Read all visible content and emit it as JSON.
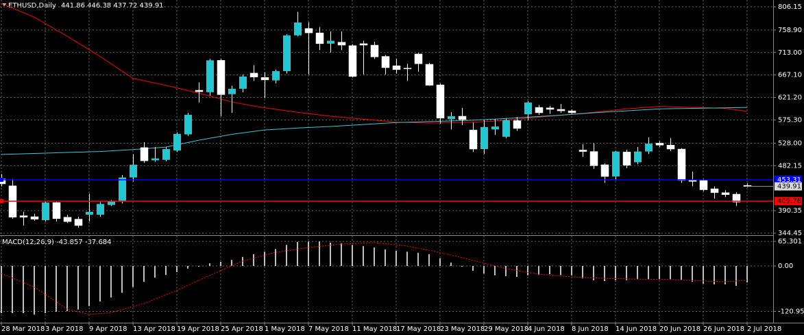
{
  "chart_data": [
    {
      "type": "candlestick",
      "title": "ETHUSD,Daily",
      "categories": [
        "28 Mar 2018",
        null,
        null,
        null,
        "3 Apr 2018",
        null,
        null,
        null,
        "9 Apr 2018",
        null,
        null,
        null,
        "13 Apr 2018",
        null,
        null,
        null,
        "19 Apr 2018",
        null,
        null,
        null,
        "25 Apr 2018",
        null,
        null,
        null,
        "1 May 2018",
        null,
        null,
        null,
        "7 May 2018",
        null,
        null,
        null,
        "11 May 2018",
        null,
        null,
        null,
        "17 May 2018",
        null,
        null,
        null,
        "23 May 2018",
        null,
        null,
        null,
        "29 May 2018",
        null,
        null,
        null,
        "4 Jun 2018",
        null,
        null,
        null,
        "8 Jun 2018",
        null,
        null,
        null,
        "14 Jun 2018",
        null,
        null,
        null,
        "20 Jun 2018",
        null,
        null,
        null,
        "26 Jun 2018",
        null,
        null,
        null,
        "2 Jul 2018"
      ],
      "open": [
        455,
        441,
        380,
        378,
        371,
        407,
        377,
        373,
        382,
        382,
        402,
        409,
        458,
        519,
        493,
        494,
        513,
        546,
        636,
        632,
        697,
        628,
        639,
        671,
        662,
        656,
        675,
        748,
        762,
        753,
        731,
        734,
        727,
        731,
        728,
        705,
        686,
        681,
        710,
        689,
        647,
        577,
        583,
        555,
        516,
        556,
        541,
        574,
        587,
        601,
        600,
        597,
        594,
        514,
        511,
        484,
        460,
        510,
        489,
        511,
        528,
        524,
        516,
        453,
        452,
        435,
        427,
        424,
        441.86
      ],
      "high": [
        465,
        455,
        388,
        384,
        410,
        408,
        382,
        378,
        425,
        408,
        412,
        463,
        505,
        530,
        520,
        520,
        550,
        590,
        652,
        700,
        700,
        645,
        668,
        687,
        672,
        678,
        750,
        796,
        775,
        765,
        756,
        756,
        730,
        737,
        735,
        708,
        700,
        690,
        712,
        692,
        650,
        591,
        600,
        570,
        575,
        577,
        578,
        582,
        614,
        606,
        604,
        608,
        597,
        526,
        528,
        487,
        512,
        515,
        520,
        540,
        532,
        538,
        518,
        470,
        455,
        440,
        432,
        428,
        446.38
      ],
      "low": [
        440,
        374,
        360,
        370,
        368,
        368,
        365,
        356,
        368,
        378,
        400,
        405,
        450,
        488,
        490,
        491,
        510,
        543,
        611,
        625,
        583,
        590,
        632,
        655,
        620,
        650,
        670,
        746,
        668,
        718,
        713,
        718,
        662,
        668,
        700,
        668,
        670,
        655,
        674,
        645,
        568,
        556,
        565,
        510,
        506,
        545,
        538,
        553,
        575,
        586,
        588,
        590,
        588,
        500,
        476,
        447,
        452,
        477,
        485,
        506,
        520,
        512,
        447,
        440,
        430,
        415,
        418,
        400,
        437.72
      ],
      "close": [
        445,
        377,
        377,
        373,
        407,
        374,
        368,
        360,
        388,
        404,
        409,
        458,
        484,
        492,
        497,
        516,
        547,
        586,
        633,
        697,
        627,
        639,
        664,
        663,
        657,
        675,
        748,
        774,
        753,
        731,
        737,
        728,
        664,
        728,
        704,
        682,
        678,
        680,
        690,
        646,
        579,
        583,
        576,
        516,
        561,
        562,
        575,
        558,
        611,
        590,
        597,
        594,
        590,
        511,
        482,
        460,
        511,
        483,
        511,
        527,
        524,
        516,
        452,
        450,
        433,
        427,
        423,
        408,
        439.91
      ],
      "bull_color": "#22c7d2",
      "bear_color": "#ffffff",
      "series": [
        {
          "color": "#ff0000",
          "x": [
            0,
            3,
            6,
            9,
            12,
            15,
            18,
            21,
            24,
            27,
            30,
            33,
            36,
            39,
            42,
            45,
            48,
            51,
            54,
            57,
            60,
            63,
            66,
            68
          ],
          "values": [
            813,
            785,
            746,
            705,
            660,
            646,
            630,
            612,
            600,
            591,
            583,
            577,
            571,
            569,
            570,
            573,
            579,
            585,
            591,
            598,
            603,
            601,
            599,
            593
          ]
        },
        {
          "color": "#40c8d8",
          "x": [
            0,
            3,
            6,
            9,
            12,
            15,
            18,
            21,
            24,
            27,
            30,
            33,
            36,
            39,
            42,
            45,
            48,
            51,
            54,
            57,
            60,
            63,
            66,
            68
          ],
          "values": [
            505,
            507,
            509,
            511,
            515,
            520,
            534,
            546,
            555,
            559,
            562,
            566,
            570,
            572,
            574,
            577,
            581,
            585,
            590,
            594,
            598,
            599,
            600,
            601
          ]
        }
      ],
      "hlines": [
        {
          "value": 453.31,
          "color": "#0000ff"
        },
        {
          "value": 409.76,
          "color": "#ff0000"
        }
      ],
      "ylim": [
        341.7,
        817.3
      ],
      "yticks": [
        806.15,
        {
          "value": 758.9,
          "label": "758.90"
        },
        {
          "value": 713,
          "label": "713.00"
        },
        {
          "value": 667.1,
          "label": "667.10"
        },
        {
          "value": 621.2,
          "label": "621.20"
        },
        {
          "value": 575.3,
          "label": "575.30"
        },
        {
          "value": 528,
          "label": "528.00"
        },
        482.15,
        390.35,
        344.45
      ],
      "grid": true
    },
    {
      "type": "macd",
      "title": "MACD(12,26,9)",
      "values": [
        -125.5,
        -125.5,
        -125.5,
        -129,
        -125.5,
        -122,
        -120,
        -116,
        -107,
        -94.5,
        -83.6,
        -71,
        -56,
        -42,
        -31,
        -24,
        -16,
        -7,
        0,
        7,
        11,
        16,
        24,
        31,
        38,
        45,
        56,
        64,
        65,
        65,
        62,
        60,
        56,
        53,
        49,
        44,
        40,
        38,
        35,
        31,
        20,
        9,
        -2,
        -13,
        -20,
        -25,
        -27,
        -29,
        -25,
        -24,
        -22,
        -24,
        -25,
        -33,
        -38,
        -40,
        -38,
        -38,
        -36,
        -35,
        -35,
        -35,
        -38,
        -42,
        -47,
        -49,
        -49,
        -53,
        -43.857
      ],
      "color": "#c0c0c0",
      "series": [
        {
          "color": "#ff0000",
          "x": [
            0,
            3,
            6,
            8,
            10,
            13,
            16,
            19,
            22,
            25,
            28,
            31,
            34,
            37,
            40,
            43,
            46,
            49,
            52,
            55,
            58,
            61,
            64,
            66,
            68
          ],
          "values": [
            -20,
            -56,
            -115,
            -129,
            -124,
            -100,
            -65,
            -25,
            13,
            36,
            49,
            58,
            62,
            53,
            36,
            15,
            -7,
            -22,
            -29,
            -33,
            -35,
            -36,
            -40,
            -42,
            -37.684
          ]
        }
      ],
      "ylim": [
        -150.9,
        78.2
      ],
      "yticks": [
        65.301,
        {
          "value": 0,
          "label": "0.00"
        },
        -120.95
      ],
      "grid": true
    }
  ]
}
